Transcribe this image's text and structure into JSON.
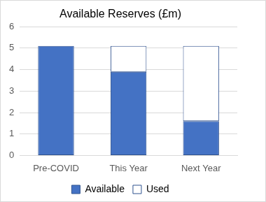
{
  "chart_data": {
    "type": "bar",
    "title": "Available Reserves (£m)",
    "categories": [
      "Pre-COVID",
      "This Year",
      "Next Year"
    ],
    "series": [
      {
        "name": "Available",
        "color": "#4472c4",
        "values": [
          5.1,
          3.9,
          1.6
        ]
      },
      {
        "name": "Used",
        "color": "#ffffff",
        "values": [
          0,
          1.2,
          3.5
        ]
      }
    ],
    "stacked": true,
    "ylim": [
      0,
      6
    ],
    "yticks": [
      0,
      1,
      2,
      3,
      4,
      5,
      6
    ],
    "grid": true,
    "legend": "bottom"
  }
}
